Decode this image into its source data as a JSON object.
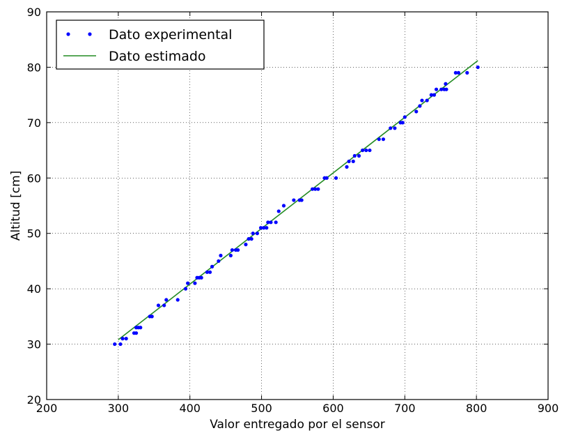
{
  "chart_data": {
    "type": "scatter",
    "title": "",
    "xlabel": "Valor entregado por el sensor",
    "ylabel": "Altitud [cm]",
    "xlim": [
      200,
      900
    ],
    "ylim": [
      20,
      90
    ],
    "xticks": [
      "200",
      "300",
      "400",
      "500",
      "600",
      "700",
      "800",
      "900"
    ],
    "yticks": [
      "20",
      "30",
      "40",
      "50",
      "60",
      "70",
      "80",
      "90"
    ],
    "grid": true,
    "legend_position": "top-left",
    "series": [
      {
        "name": "Dato experimental",
        "kind": "scatter",
        "color": "#0000ff",
        "points": [
          [
            295,
            30
          ],
          [
            303,
            30
          ],
          [
            306,
            31
          ],
          [
            311,
            31
          ],
          [
            322,
            32
          ],
          [
            325,
            32
          ],
          [
            325,
            33
          ],
          [
            328,
            33
          ],
          [
            331,
            33
          ],
          [
            344,
            35
          ],
          [
            347,
            35
          ],
          [
            356,
            37
          ],
          [
            364,
            37
          ],
          [
            367,
            38
          ],
          [
            383,
            38
          ],
          [
            394,
            40
          ],
          [
            397,
            41
          ],
          [
            407,
            41
          ],
          [
            410,
            42
          ],
          [
            413,
            42
          ],
          [
            416,
            42
          ],
          [
            424,
            43
          ],
          [
            428,
            43
          ],
          [
            431,
            44
          ],
          [
            440,
            45
          ],
          [
            443,
            46
          ],
          [
            457,
            46
          ],
          [
            459,
            47
          ],
          [
            464,
            47
          ],
          [
            467,
            47
          ],
          [
            478,
            48
          ],
          [
            482,
            49
          ],
          [
            486,
            49
          ],
          [
            488,
            50
          ],
          [
            494,
            50
          ],
          [
            499,
            51
          ],
          [
            503,
            51
          ],
          [
            507,
            51
          ],
          [
            509,
            52
          ],
          [
            513,
            52
          ],
          [
            520,
            52
          ],
          [
            524,
            54
          ],
          [
            531,
            55
          ],
          [
            545,
            56
          ],
          [
            553,
            56
          ],
          [
            556,
            56
          ],
          [
            571,
            58
          ],
          [
            575,
            58
          ],
          [
            579,
            58
          ],
          [
            588,
            60
          ],
          [
            591,
            60
          ],
          [
            604,
            60
          ],
          [
            619,
            62
          ],
          [
            622,
            63
          ],
          [
            628,
            63
          ],
          [
            630,
            64
          ],
          [
            636,
            64
          ],
          [
            641,
            65
          ],
          [
            646,
            65
          ],
          [
            651,
            65
          ],
          [
            664,
            67
          ],
          [
            670,
            67
          ],
          [
            680,
            69
          ],
          [
            686,
            69
          ],
          [
            694,
            70
          ],
          [
            697,
            70
          ],
          [
            700,
            71
          ],
          [
            716,
            72
          ],
          [
            721,
            73
          ],
          [
            724,
            74
          ],
          [
            731,
            74
          ],
          [
            737,
            75
          ],
          [
            741,
            75
          ],
          [
            744,
            76
          ],
          [
            751,
            76
          ],
          [
            755,
            76
          ],
          [
            757,
            77
          ],
          [
            758,
            76
          ],
          [
            771,
            79
          ],
          [
            775,
            79
          ],
          [
            787,
            79
          ],
          [
            802,
            80
          ]
        ]
      },
      {
        "name": "Dato estimado",
        "kind": "line",
        "color": "#228b22",
        "points": [
          [
            300,
            30.8
          ],
          [
            802,
            81.2
          ]
        ]
      }
    ]
  }
}
